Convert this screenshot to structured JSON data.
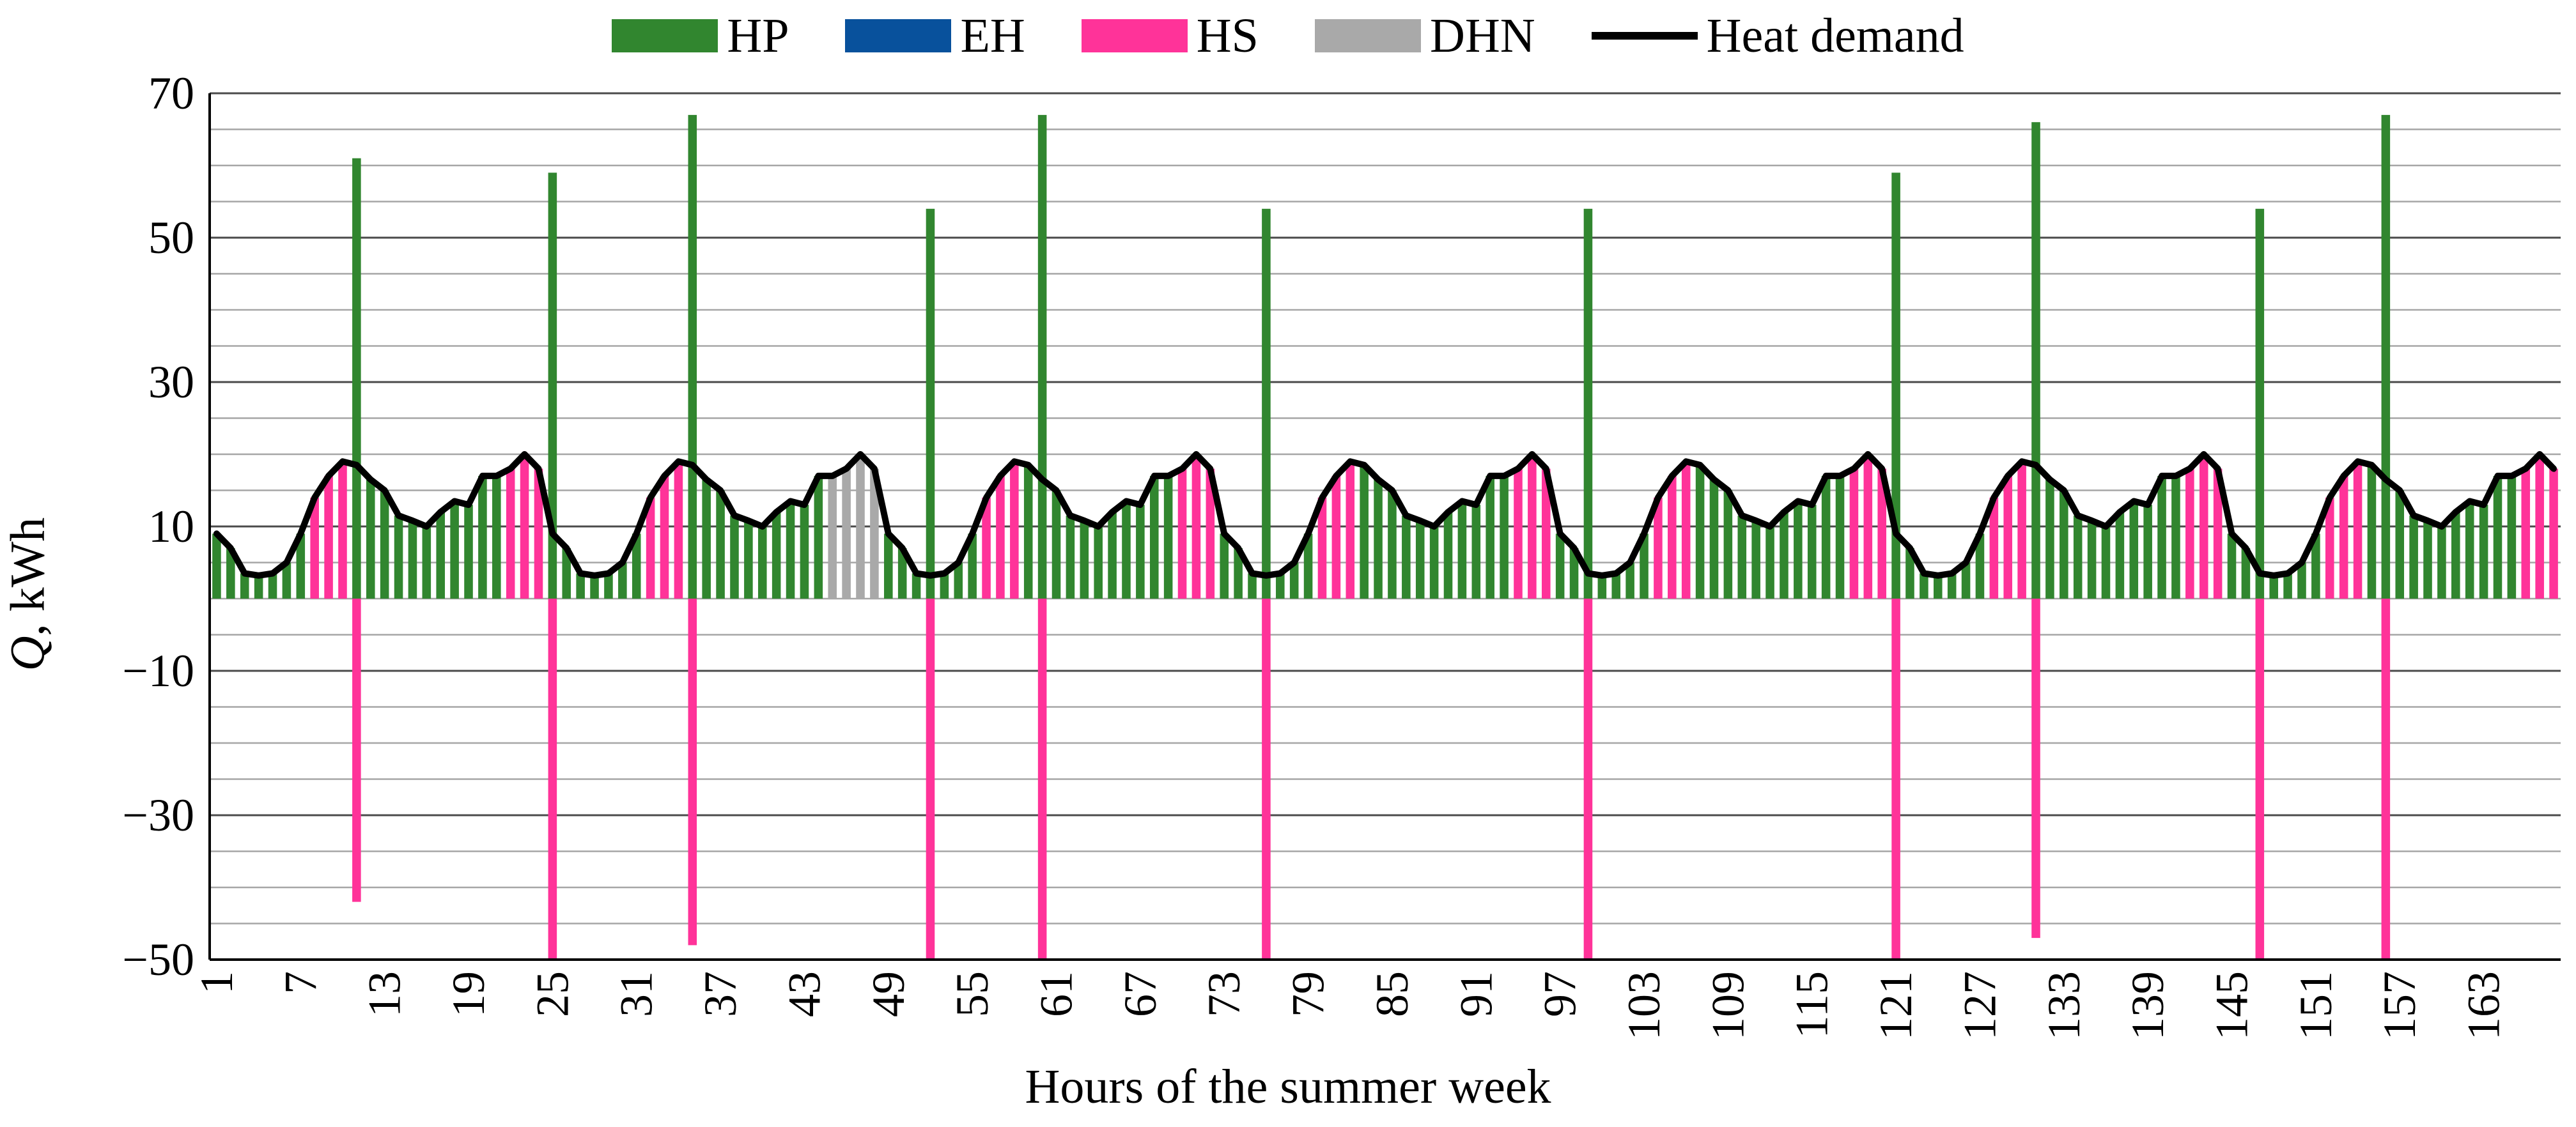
{
  "chart_data": {
    "type": "bar",
    "stacked": true,
    "title": "",
    "xlabel": "Hours of the summer week",
    "ylabel_var": "Q",
    "ylabel_unit": ", kWh",
    "ylim": [
      -50,
      70
    ],
    "yticks": [
      70,
      50,
      30,
      10,
      -10,
      -30,
      -50
    ],
    "ytick_labels": [
      "70",
      "50",
      "30",
      "10",
      "−10",
      "−30",
      "−50"
    ],
    "x_range": [
      1,
      168
    ],
    "xticks": [
      1,
      7,
      13,
      19,
      25,
      31,
      37,
      43,
      49,
      55,
      61,
      67,
      73,
      79,
      85,
      91,
      97,
      103,
      109,
      115,
      121,
      127,
      133,
      139,
      145,
      151,
      157,
      163
    ],
    "grid": "horizontal, every 5 kWh",
    "legend_position": "top-center",
    "legend": [
      {
        "label": "HP",
        "color": "#31862f",
        "kind": "bar"
      },
      {
        "label": "EH",
        "color": "#08519c",
        "kind": "bar"
      },
      {
        "label": "HS",
        "color": "#ff3399",
        "kind": "bar"
      },
      {
        "label": "DHN",
        "color": "#a9a9a9",
        "kind": "bar"
      },
      {
        "label": "Heat demand",
        "color": "#000000",
        "kind": "line"
      }
    ],
    "heat_demand_daily_profile": [
      9,
      7,
      3.5,
      3.2,
      3.5,
      5,
      9,
      14,
      17,
      19,
      18.5,
      16.5,
      15,
      11.5,
      10.8,
      10,
      12,
      13.5,
      13,
      17,
      17,
      18,
      20,
      18
    ],
    "days": [
      {
        "day": 1,
        "source_by_hour": "hours 1-7 HP; 8-10 HS; 11-21 HP; 22-24 HS"
      },
      {
        "day": 2,
        "source_by_hour": "hours 1-7 HP; 8-10 HS; 11-20 HP; 21-24 DHN"
      },
      {
        "day": 3,
        "source_by_hour": "hours 1-7 HP; 8-10 HS; 11-21 HP; 22-24 HS"
      },
      {
        "day": 4,
        "source_by_hour": "hours 1-7 HP; 8-10 HS; 11-21 HP; 22-24 HS"
      },
      {
        "day": 5,
        "source_by_hour": "hours 1-7 HP; 8-10 HS; 11-21 HP; 22-24 HS"
      },
      {
        "day": 6,
        "source_by_hour": "hours 1-7 HP; 8-10 HS; 11-21 HP; 22-24 HS"
      },
      {
        "day": 7,
        "source_by_hour": "hours 1-7 HP; 8-10 HS; 11-21 HP; 22-24 HS"
      }
    ],
    "hp_peaks": [
      {
        "hour": 11,
        "value": 61
      },
      {
        "hour": 25,
        "value": 59
      },
      {
        "hour": 35,
        "value": 67
      },
      {
        "hour": 52,
        "value": 54
      },
      {
        "hour": 60,
        "value": 67
      },
      {
        "hour": 76,
        "value": 54
      },
      {
        "hour": 99,
        "value": 54
      },
      {
        "hour": 121,
        "value": 59
      },
      {
        "hour": 131,
        "value": 66
      },
      {
        "hour": 147,
        "value": 54
      },
      {
        "hour": 156,
        "value": 67
      }
    ],
    "hs_charging": [
      {
        "hour": 11,
        "value": -42
      },
      {
        "hour": 25,
        "value": -50
      },
      {
        "hour": 35,
        "value": -48
      },
      {
        "hour": 52,
        "value": -50
      },
      {
        "hour": 60,
        "value": -50
      },
      {
        "hour": 76,
        "value": -50
      },
      {
        "hour": 99,
        "value": -50
      },
      {
        "hour": 121,
        "value": -50
      },
      {
        "hour": 131,
        "value": -47
      },
      {
        "hour": 147,
        "value": -50
      },
      {
        "hour": 156,
        "value": -50
      }
    ]
  }
}
